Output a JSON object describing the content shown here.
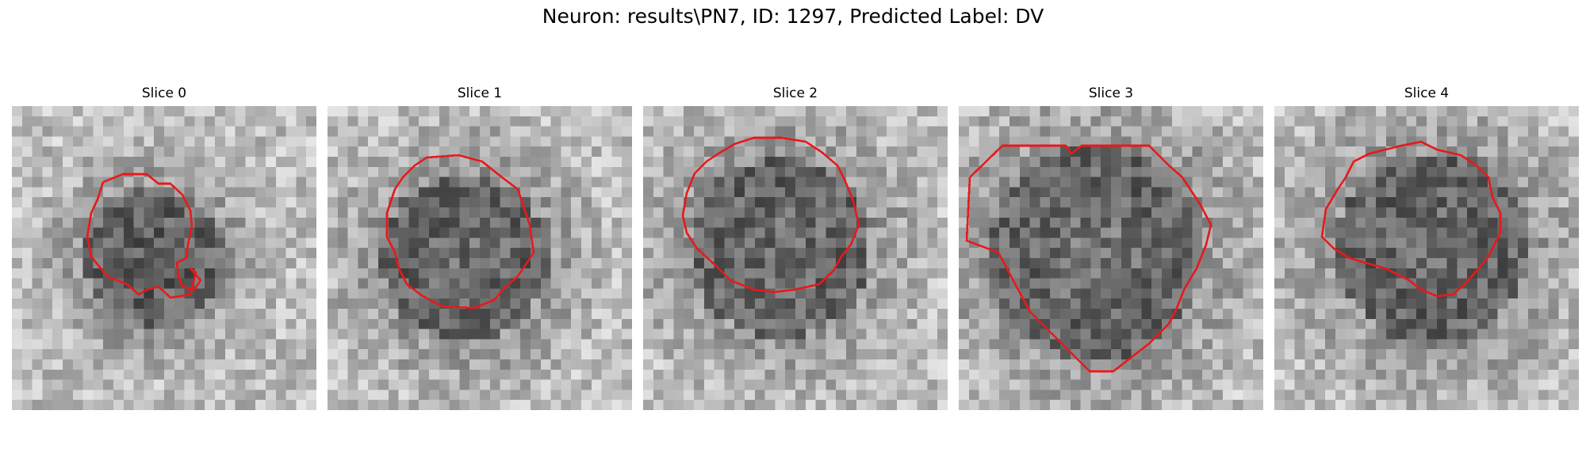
{
  "figure": {
    "title": "Neuron: results\\PN7, ID: 1297, Predicted Label: DV"
  },
  "contour_color": "#e8191b",
  "panels": [
    {
      "title": "Slice 0"
    },
    {
      "title": "Slice 1"
    },
    {
      "title": "Slice 2"
    },
    {
      "title": "Slice 3"
    },
    {
      "title": "Slice 4"
    }
  ]
}
